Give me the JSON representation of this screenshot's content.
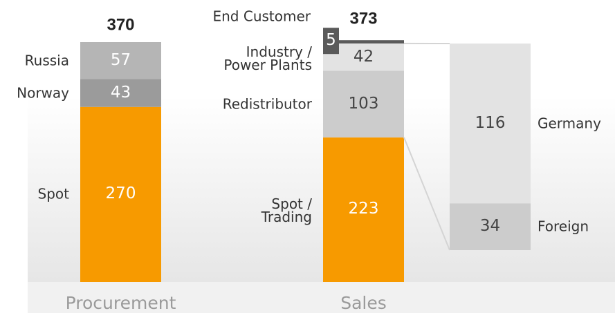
{
  "chart_data": {
    "type": "stacked_bar",
    "bars": [
      {
        "category": "Procurement",
        "total": 370,
        "segments": [
          {
            "name": "Spot",
            "value": 270,
            "color": "#f79a00"
          },
          {
            "name": "Norway",
            "value": 43,
            "color": "#9b9b9b"
          },
          {
            "name": "Russia",
            "value": 57,
            "color": "#b5b5b5"
          }
        ]
      },
      {
        "category": "Sales",
        "total": 373,
        "segments": [
          {
            "name": "Spot /\nTrading",
            "value": 223,
            "color": "#f79a00"
          },
          {
            "name": "Redistributor",
            "value": 103,
            "color": "#cccccc"
          },
          {
            "name": "Industry /\nPower Plants",
            "value": 42,
            "color": "#e3e3e3"
          },
          {
            "name": "End Customer",
            "value": 5,
            "color": "#5a5a5a"
          }
        ]
      }
    ],
    "breakdown": {
      "segments": [
        {
          "name": "Foreign",
          "value": 34,
          "color": "#cccccc"
        },
        {
          "name": "Germany",
          "value": 116,
          "color": "#e3e3e3"
        }
      ]
    }
  }
}
